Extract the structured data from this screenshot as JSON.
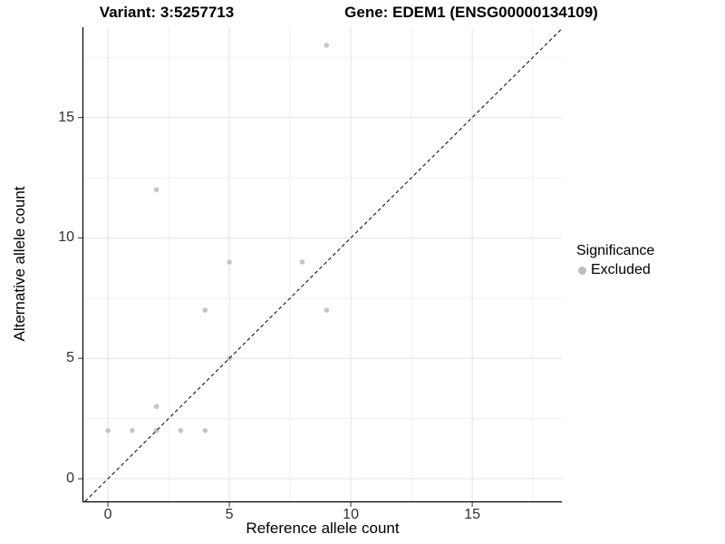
{
  "chart_data": {
    "type": "scatter",
    "title_left": "Variant: 3:5257713",
    "title_right": "Gene: EDEM1 (ENSG00000134109)",
    "xlabel": "Reference allele count",
    "ylabel": "Alternative allele count",
    "xlim": [
      -1.01,
      18.69
    ],
    "ylim": [
      -0.94,
      18.75
    ],
    "x_ticks": [
      0,
      5,
      10,
      15
    ],
    "y_ticks": [
      0,
      5,
      10,
      15
    ],
    "x_minor_ticks": [
      2.5,
      7.5,
      12.5,
      17.5
    ],
    "y_minor_ticks": [
      2.5,
      7.5,
      12.5,
      17.5
    ],
    "grid": {
      "major_color": "#e3e3e3",
      "minor_color": "#f0f0f0"
    },
    "series": [
      {
        "name": "Excluded",
        "color": "#c5c5c5",
        "points": [
          [
            0,
            2
          ],
          [
            1,
            2
          ],
          [
            2,
            2
          ],
          [
            2,
            3
          ],
          [
            2,
            12
          ],
          [
            3,
            2
          ],
          [
            4,
            2
          ],
          [
            4,
            7
          ],
          [
            5,
            5
          ],
          [
            5,
            9
          ],
          [
            8,
            9
          ],
          [
            9,
            7
          ],
          [
            9,
            18
          ]
        ]
      }
    ],
    "identity_line": {
      "style": "dashed",
      "equation": "y = x",
      "color": "#141414"
    },
    "legend": {
      "title": "Significance",
      "entries": [
        {
          "label": "Excluded",
          "color": "#bdbdbd"
        }
      ],
      "position": "right"
    },
    "axis_color": "#000000",
    "tick_label_color": "#303030"
  }
}
